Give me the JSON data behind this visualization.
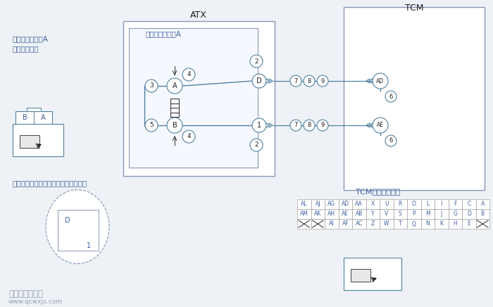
{
  "title_atx": "ATX",
  "title_tcm": "TCM",
  "label_pressure_valve": "压力控制电磁阀A",
  "label_connector_left_1": "压力控制电磁阀A",
  "label_connector_left_2": "线束侧连接器",
  "label_connector_main": "变速驱动桥连接器（主）线束侧连接器",
  "label_tcm_connector": "TCM线束侧连接器",
  "bg_color": "#eef2f6",
  "line_color": "#5080a0",
  "text_color_blue": "#4060a0",
  "text_color_dark": "#202020",
  "wire_numbers_top": [
    "7",
    "8",
    "9"
  ],
  "wire_numbers_bot": [
    "7",
    "8",
    "9"
  ],
  "table_row1": [
    "AL",
    "AJ",
    "AG",
    "AD",
    "AA",
    "X",
    "U",
    "R",
    "O",
    "L",
    "I",
    "F",
    "C",
    "A"
  ],
  "table_row2": [
    "AM",
    "AK",
    "AH",
    "AE",
    "AB",
    "Y",
    "V",
    "S",
    "P",
    "M",
    "J",
    "G",
    "D",
    "B"
  ],
  "table_row3": [
    "",
    "",
    "AI",
    "AF",
    "AC",
    "Z",
    "W",
    "T",
    "Q",
    "N",
    "K",
    "H",
    "E",
    ""
  ],
  "table_row3_cross": [
    1,
    1,
    0,
    0,
    0,
    0,
    0,
    0,
    0,
    0,
    0,
    0,
    0,
    1
  ]
}
